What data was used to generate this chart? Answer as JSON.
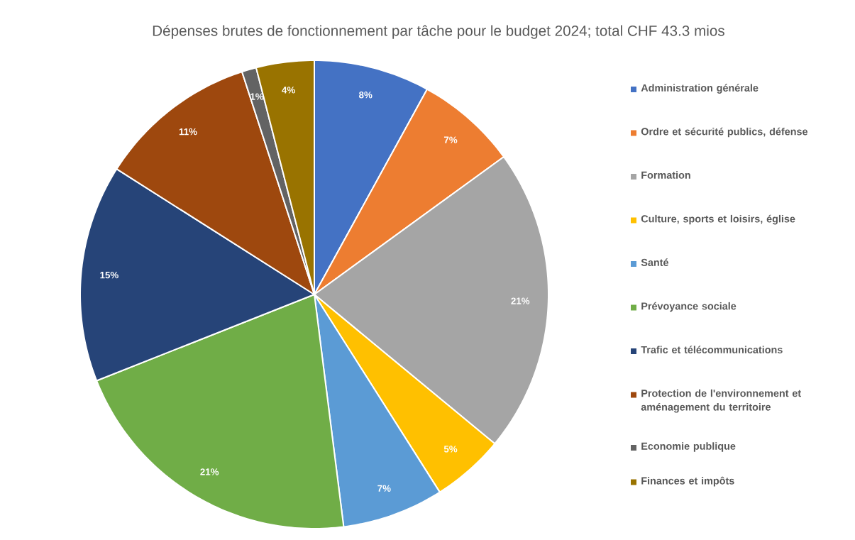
{
  "chart_data": {
    "type": "pie",
    "title": "Dépenses brutes de fonctionnement par tâche pour le budget 2024; total CHF 43.3 mios",
    "categories": [
      "Administration générale",
      "Ordre et sécurité publics, défense",
      "Formation",
      "Culture, sports et loisirs, église",
      "Santé",
      "Prévoyance sociale",
      "Trafic et télécommunications",
      "Protection de l'environnement et aménagement du territoire",
      "Economie publique",
      "Finances et impôts"
    ],
    "values": [
      8,
      7,
      21,
      5,
      7,
      21,
      15,
      11,
      1,
      4
    ],
    "value_labels": [
      "8%",
      "7%",
      "21%",
      "5%",
      "7%",
      "21%",
      "15%",
      "11%",
      "1%",
      "4%"
    ],
    "colors": [
      "#4472c4",
      "#ed7d31",
      "#a5a5a5",
      "#ffc000",
      "#5b9bd5",
      "#70ad47",
      "#264478",
      "#9e480e",
      "#636363",
      "#997300"
    ],
    "legend": "right"
  }
}
